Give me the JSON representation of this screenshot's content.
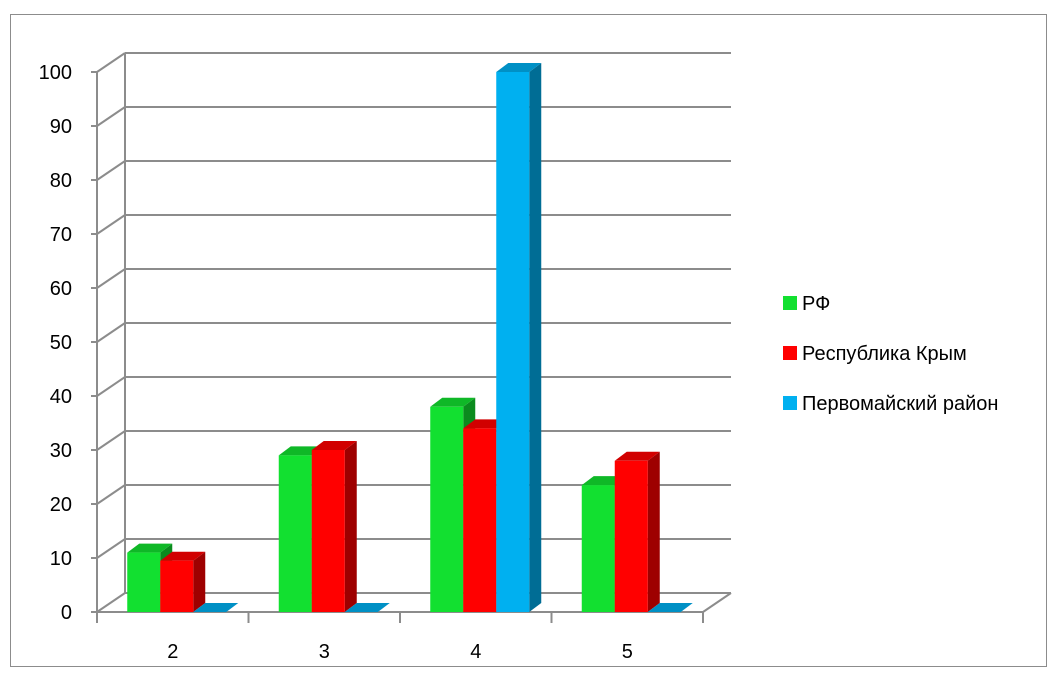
{
  "chart_data": {
    "type": "bar",
    "style": "3d-clustered",
    "categories": [
      "2",
      "3",
      "4",
      "5"
    ],
    "series": [
      {
        "name": "РФ",
        "color": "#12e030",
        "values": [
          11,
          29,
          38,
          23.5
        ]
      },
      {
        "name": "Республика Крым",
        "color": "#ff0000",
        "values": [
          9.5,
          30,
          34,
          28
        ]
      },
      {
        "name": "Первомайский район",
        "color": "#00b0f0",
        "values": [
          0,
          0,
          100,
          0
        ]
      }
    ],
    "ylim": [
      0,
      100
    ],
    "ytick_step": 10,
    "yticks": [
      "0",
      "10",
      "20",
      "30",
      "40",
      "50",
      "60",
      "70",
      "80",
      "90",
      "100"
    ],
    "grid": true,
    "legend_position": "right"
  }
}
